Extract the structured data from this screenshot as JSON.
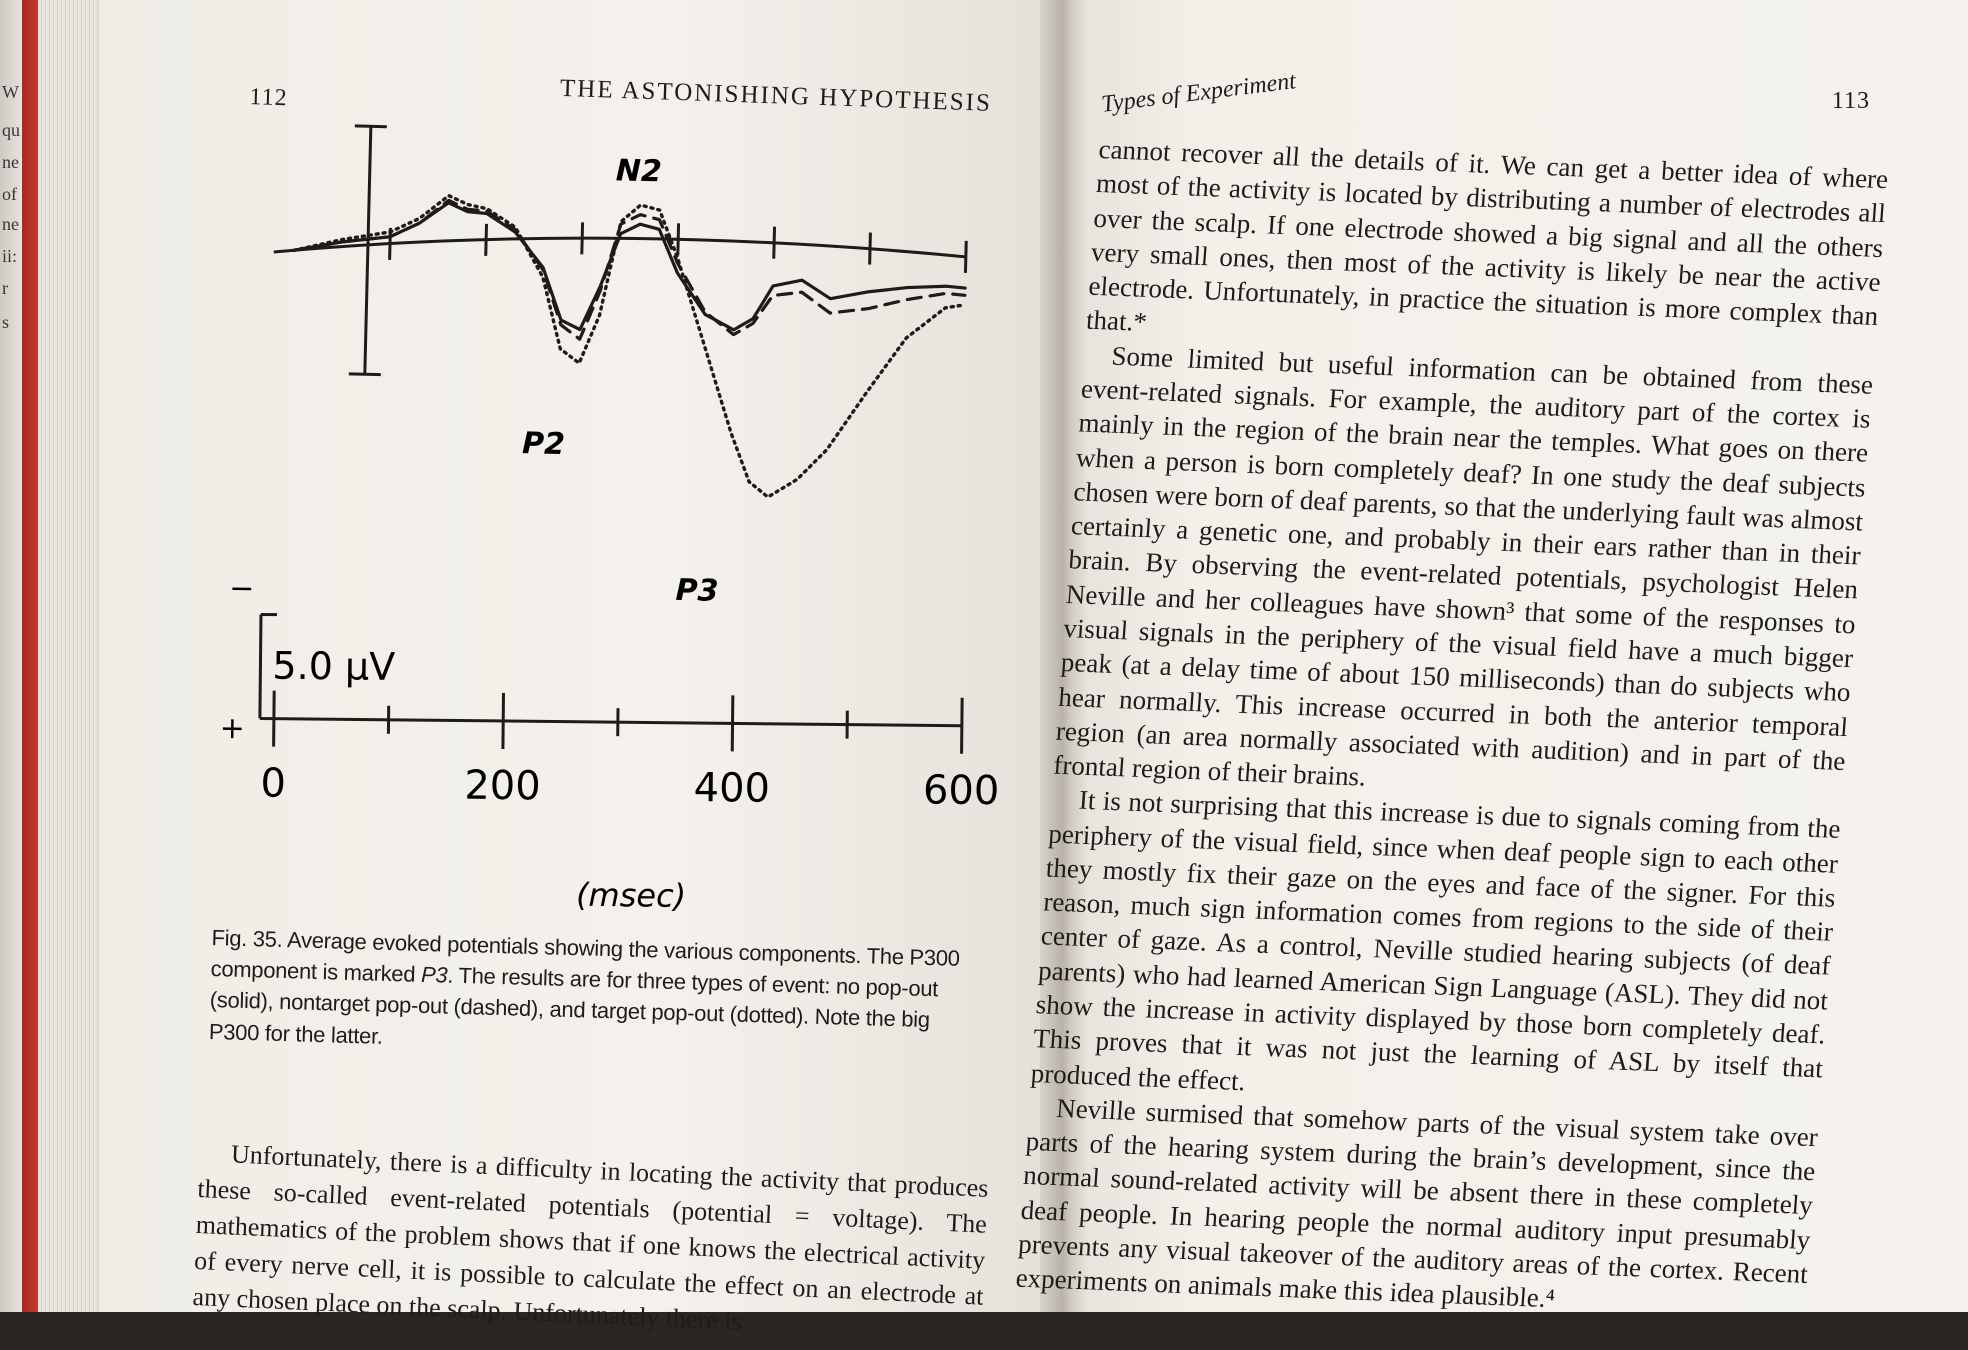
{
  "edge_fragments": [
    "W",
    "qu",
    "ne",
    "of",
    "ne",
    "ii:",
    "r",
    "s"
  ],
  "left_page": {
    "page_number": "112",
    "running_title": "THE ASTONISHING HYPOTHESIS",
    "figure": {
      "labels": {
        "n2": "N2",
        "p2": "P2",
        "p3": "P3",
        "minus": "−",
        "plus": "+",
        "scale": "5.0 μV",
        "x_unit": "(msec)"
      },
      "x_ticks": [
        "0",
        "200",
        "400",
        "600"
      ]
    },
    "caption_parts": {
      "a": "Fig. 35. Average evoked potentials showing the various components. The P300 component is marked ",
      "b": "P3",
      "c": ". The results are for three types of event: no pop-out (solid), nontarget pop-out (dashed), and target pop-out (dotted). Note the big P300 for the latter."
    },
    "body": "Unfortunately, there is a difficulty in locating the activity that produces these so-called event-related potentials (potential = voltage). The mathematics of the problem shows that if one knows the electrical activity of every nerve cell, it is possible to calculate the effect on an electrode at any chosen place on the scalp. Unfortunately there is"
  },
  "chart_data": {
    "type": "line",
    "title": "",
    "xlabel": "(msec)",
    "ylabel": "5.0 μV",
    "x_ticks": [
      0,
      200,
      400,
      600
    ],
    "xlim": [
      -100,
      600
    ],
    "y_orientation": "negative up",
    "series": [
      {
        "name": "no pop-out (solid)",
        "x": [
          -100,
          -50,
          0,
          30,
          60,
          80,
          100,
          130,
          160,
          180,
          200,
          220,
          240,
          260,
          280,
          300,
          330,
          360,
          380,
          400,
          430,
          460,
          500,
          540,
          580,
          600
        ],
        "y": [
          0,
          -0.2,
          -0.3,
          -0.8,
          -1.6,
          -1.2,
          -1.1,
          -0.3,
          1.2,
          3.4,
          3.8,
          2.0,
          -0.2,
          -0.6,
          -0.4,
          1.4,
          3.1,
          3.7,
          3.2,
          1.8,
          1.5,
          2.2,
          1.8,
          1.5,
          1.3,
          1.3
        ]
      },
      {
        "name": "nontarget pop-out (dashed)",
        "x": [
          -100,
          -50,
          0,
          30,
          60,
          80,
          100,
          130,
          160,
          180,
          200,
          220,
          240,
          260,
          280,
          300,
          330,
          360,
          380,
          400,
          430,
          460,
          500,
          540,
          580,
          600
        ],
        "y": [
          0,
          -0.2,
          -0.3,
          -0.8,
          -1.7,
          -1.3,
          -1.2,
          -0.4,
          1.3,
          3.6,
          4.2,
          2.2,
          -0.6,
          -1.0,
          -0.8,
          1.0,
          3.0,
          3.9,
          3.4,
          2.2,
          2.0,
          2.8,
          2.5,
          2.0,
          1.6,
          1.6
        ]
      },
      {
        "name": "target pop-out (dotted)",
        "x": [
          -100,
          -50,
          0,
          30,
          60,
          80,
          100,
          130,
          160,
          180,
          200,
          220,
          240,
          260,
          280,
          300,
          330,
          360,
          380,
          400,
          430,
          460,
          500,
          540,
          580,
          600
        ],
        "y": [
          0,
          -0.3,
          -0.5,
          -1.0,
          -1.9,
          -1.5,
          -1.3,
          -0.5,
          1.6,
          4.6,
          5.2,
          3.2,
          -0.7,
          -1.4,
          -1.2,
          0.8,
          4.4,
          8.0,
          10.0,
          10.6,
          9.8,
          8.5,
          6.0,
          3.6,
          2.2,
          2.0
        ]
      }
    ],
    "annotations": [
      "N2",
      "P2",
      "P3"
    ]
  },
  "right_page": {
    "running_title": "Types of Experiment",
    "page_number": "113",
    "paragraphs": [
      "cannot recover all the details of it. We can get a better idea of where most of the activity is located by distributing a number of electrodes all over the scalp. If one electrode showed a big signal and all the others very small ones, then most of the activity is likely be near the active electrode. Unfortunately, in practice the situation is more complex than that.*",
      "Some limited but useful information can be obtained from these event-related signals. For example, the auditory part of the cortex is mainly in the region of the brain near the temples. What goes on there when a person is born completely deaf? In one study the deaf subjects chosen were born of deaf parents, so that the underlying fault was almost certainly a genetic one, and probably in their ears rather than in their brain. By observing the event-related potentials, psychologist Helen Neville and her colleagues have shown³ that some of the responses to visual signals in the periphery of the visual field have a much bigger peak (at a delay time of about 150 milliseconds) than do subjects who hear normally. This increase occurred in both the anterior temporal region (an area normally associated with audition) and in part of the frontal region of their brains.",
      "It is not surprising that this increase is due to signals coming from the periphery of the visual field, since when deaf people sign to each other they mostly fix their gaze on the eyes and face of the signer. For this reason, much sign information comes from regions to the side of their center of gaze. As a control, Neville studied hearing subjects (of deaf parents) who had learned American Sign Language (ASL). They did not show the increase in activity displayed by those born completely deaf. This proves that it was not just the learning of ASL by itself that produced the effect.",
      "Neville surmised that somehow parts of the visual system take over parts of the hearing system during the brain’s development, since the normal sound-related activity will be absent there in these completely deaf people. In hearing people the normal auditory input presumably prevents any visual takeover of the auditory areas of the cortex. Recent experiments on animals make this idea plausible.⁴"
    ]
  }
}
